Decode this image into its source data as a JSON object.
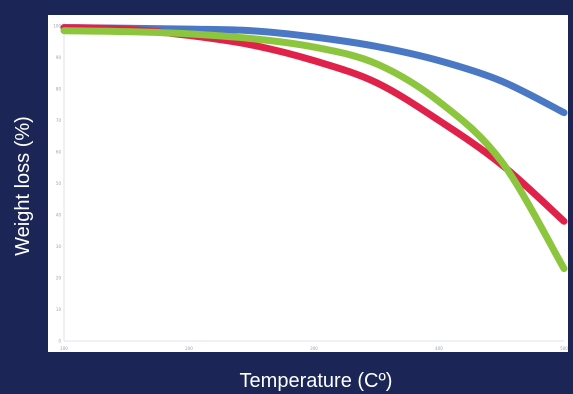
{
  "chart_data": {
    "type": "line",
    "title": "",
    "xlabel": "Temperature (Cº)",
    "ylabel": "Weight loss (%)",
    "xlim": [
      100,
      500
    ],
    "ylim": [
      0,
      100
    ],
    "x_ticks": [
      "100",
      "200",
      "300",
      "400",
      "500"
    ],
    "y_ticks": [
      "0",
      "10",
      "20",
      "30",
      "40",
      "50",
      "60",
      "70",
      "80",
      "90",
      "100"
    ],
    "grid": false,
    "series": [
      {
        "color": "#4a78c4",
        "x": [
          100,
          150,
          200,
          250,
          300,
          350,
          400,
          450,
          500
        ],
        "y": [
          99.5,
          99.3,
          99,
          98.5,
          96.5,
          93.5,
          89,
          82.5,
          72.5
        ]
      },
      {
        "color": "#e0224a",
        "x": [
          100,
          150,
          200,
          250,
          300,
          350,
          400,
          450,
          500
        ],
        "y": [
          99.5,
          99,
          97,
          94,
          89,
          82,
          70,
          56,
          38
        ]
      },
      {
        "color": "#8cc63f",
        "x": [
          100,
          150,
          200,
          250,
          300,
          350,
          400,
          450,
          500
        ],
        "y": [
          98.5,
          98.2,
          97.5,
          96,
          93.3,
          88,
          76,
          57,
          23
        ]
      }
    ]
  }
}
